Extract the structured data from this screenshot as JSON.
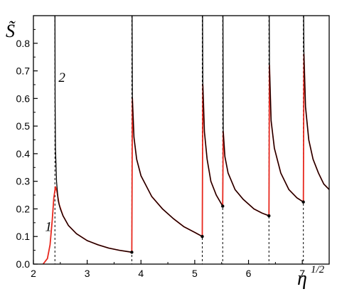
{
  "chart_data": {
    "type": "line",
    "title": "",
    "xlabel": "η",
    "xlabel_exponent": "1/2",
    "ylabel": "S̃",
    "xlim": [
      2,
      7.5
    ],
    "ylim": [
      0,
      0.9
    ],
    "xticks": [
      2,
      3,
      4,
      5,
      6,
      7
    ],
    "yticks": [
      0.0,
      0.1,
      0.2,
      0.3,
      0.4,
      0.5,
      0.6,
      0.7,
      0.8
    ],
    "grid": false,
    "legend": "none",
    "annotations": [
      {
        "text": "1",
        "x": 2.28,
        "y": 0.12
      },
      {
        "text": "2",
        "x": 2.53,
        "y": 0.66
      }
    ],
    "thresholds": [
      2.4,
      3.83,
      5.14,
      5.52,
      6.38,
      7.02
    ],
    "threshold_points": [
      {
        "x": 3.83,
        "y": 0.043
      },
      {
        "x": 5.14,
        "y": 0.1
      },
      {
        "x": 5.52,
        "y": 0.21
      },
      {
        "x": 6.38,
        "y": 0.175
      },
      {
        "x": 7.02,
        "y": 0.225
      }
    ],
    "series": [
      {
        "name": "1",
        "color": "#e8281e",
        "segments": [
          [
            [
              2.18,
              0.0
            ],
            [
              2.26,
              0.02
            ],
            [
              2.31,
              0.07
            ],
            [
              2.35,
              0.16
            ],
            [
              2.38,
              0.24
            ],
            [
              2.41,
              0.28
            ],
            [
              2.44,
              0.26
            ],
            [
              2.48,
              0.215
            ],
            [
              2.55,
              0.175
            ],
            [
              2.65,
              0.14
            ],
            [
              2.8,
              0.11
            ],
            [
              3.0,
              0.085
            ],
            [
              3.2,
              0.07
            ],
            [
              3.4,
              0.058
            ],
            [
              3.6,
              0.05
            ],
            [
              3.83,
              0.043
            ]
          ],
          [
            [
              3.83,
              0.043
            ],
            [
              3.84,
              0.6
            ],
            [
              3.87,
              0.46
            ],
            [
              3.92,
              0.38
            ],
            [
              4.0,
              0.32
            ],
            [
              4.2,
              0.245
            ],
            [
              4.4,
              0.2
            ],
            [
              4.6,
              0.165
            ],
            [
              4.8,
              0.135
            ],
            [
              5.0,
              0.115
            ],
            [
              5.14,
              0.1
            ]
          ],
          [
            [
              5.14,
              0.1
            ],
            [
              5.15,
              0.65
            ],
            [
              5.18,
              0.48
            ],
            [
              5.23,
              0.38
            ],
            [
              5.3,
              0.3
            ],
            [
              5.4,
              0.25
            ],
            [
              5.52,
              0.21
            ]
          ],
          [
            [
              5.52,
              0.21
            ],
            [
              5.53,
              0.48
            ],
            [
              5.56,
              0.39
            ],
            [
              5.62,
              0.33
            ],
            [
              5.75,
              0.27
            ],
            [
              5.9,
              0.235
            ],
            [
              6.1,
              0.2
            ],
            [
              6.25,
              0.185
            ],
            [
              6.38,
              0.175
            ]
          ],
          [
            [
              6.38,
              0.175
            ],
            [
              6.39,
              0.72
            ],
            [
              6.42,
              0.52
            ],
            [
              6.48,
              0.42
            ],
            [
              6.6,
              0.33
            ],
            [
              6.75,
              0.27
            ],
            [
              6.9,
              0.24
            ],
            [
              7.02,
              0.225
            ]
          ],
          [
            [
              7.02,
              0.225
            ],
            [
              7.03,
              0.76
            ],
            [
              7.06,
              0.57
            ],
            [
              7.12,
              0.45
            ],
            [
              7.2,
              0.38
            ],
            [
              7.3,
              0.33
            ],
            [
              7.4,
              0.29
            ],
            [
              7.5,
              0.27
            ]
          ]
        ]
      },
      {
        "name": "2",
        "color": "#000000",
        "segments": [
          [
            [
              2.4,
              0.9
            ],
            [
              2.403,
              0.6
            ],
            [
              2.41,
              0.42
            ],
            [
              2.43,
              0.3
            ],
            [
              2.46,
              0.23
            ],
            [
              2.5,
              0.2
            ],
            [
              2.55,
              0.175
            ],
            [
              2.65,
              0.14
            ],
            [
              2.8,
              0.11
            ],
            [
              3.0,
              0.085
            ],
            [
              3.2,
              0.07
            ],
            [
              3.4,
              0.058
            ],
            [
              3.6,
              0.05
            ],
            [
              3.83,
              0.043
            ]
          ],
          [
            [
              3.835,
              0.9
            ],
            [
              3.84,
              0.6
            ],
            [
              3.87,
              0.46
            ],
            [
              3.92,
              0.38
            ],
            [
              4.0,
              0.32
            ],
            [
              4.2,
              0.245
            ],
            [
              4.4,
              0.2
            ],
            [
              4.6,
              0.165
            ],
            [
              4.8,
              0.135
            ],
            [
              5.0,
              0.115
            ],
            [
              5.14,
              0.1
            ]
          ],
          [
            [
              5.145,
              0.9
            ],
            [
              5.15,
              0.65
            ],
            [
              5.18,
              0.48
            ],
            [
              5.23,
              0.38
            ],
            [
              5.3,
              0.3
            ],
            [
              5.4,
              0.25
            ],
            [
              5.52,
              0.21
            ]
          ],
          [
            [
              5.525,
              0.9
            ],
            [
              5.53,
              0.48
            ],
            [
              5.56,
              0.39
            ],
            [
              5.62,
              0.33
            ],
            [
              5.75,
              0.27
            ],
            [
              5.9,
              0.235
            ],
            [
              6.1,
              0.2
            ],
            [
              6.25,
              0.185
            ],
            [
              6.38,
              0.175
            ]
          ],
          [
            [
              6.385,
              0.9
            ],
            [
              6.39,
              0.72
            ],
            [
              6.42,
              0.52
            ],
            [
              6.48,
              0.42
            ],
            [
              6.6,
              0.33
            ],
            [
              6.75,
              0.27
            ],
            [
              6.9,
              0.24
            ],
            [
              7.02,
              0.225
            ]
          ],
          [
            [
              7.025,
              0.9
            ],
            [
              7.03,
              0.76
            ],
            [
              7.06,
              0.57
            ],
            [
              7.12,
              0.45
            ],
            [
              7.2,
              0.38
            ],
            [
              7.3,
              0.33
            ],
            [
              7.4,
              0.29
            ],
            [
              7.5,
              0.27
            ]
          ]
        ]
      }
    ]
  }
}
